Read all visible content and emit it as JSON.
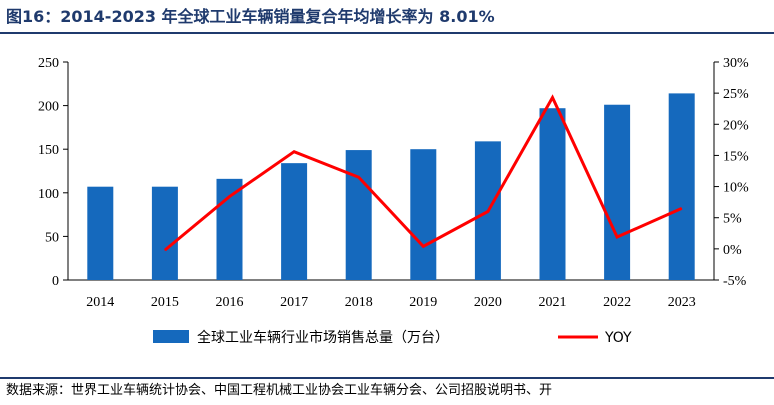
{
  "figure": {
    "title": "图16：2014-2023 年全球工业车辆销量复合年均增长率为 8.01%",
    "source": "数据来源：世界工业车辆统计协会、中国工程机械工业协会工业车辆分会、公司招股说明书、开"
  },
  "colors": {
    "bar": "#1569bd",
    "line": "#ff0000",
    "title": "#1f3a6d"
  },
  "chart_data": {
    "type": "bar",
    "categories": [
      "2014",
      "2015",
      "2016",
      "2017",
      "2018",
      "2019",
      "2020",
      "2021",
      "2022",
      "2023"
    ],
    "series": [
      {
        "name": "全球工业车辆行业市场销售总量（万台）",
        "type": "bar",
        "axis": "left",
        "values": [
          107,
          107,
          116,
          134,
          149,
          150,
          159,
          197,
          201,
          214
        ]
      },
      {
        "name": "YOY",
        "type": "line",
        "axis": "right",
        "values": [
          null,
          -0.2,
          8.4,
          15.6,
          11.5,
          0.4,
          6.0,
          24.3,
          1.9,
          6.5
        ]
      }
    ],
    "y_left": {
      "lim": [
        0,
        250
      ],
      "ticks": [
        "0",
        "50",
        "100",
        "150",
        "200",
        "250"
      ]
    },
    "y_right": {
      "lim": [
        -5,
        30
      ],
      "ticks": [
        "-5%",
        "0%",
        "5%",
        "10%",
        "15%",
        "20%",
        "25%",
        "30%"
      ]
    },
    "grid": false,
    "legend": "bottom"
  }
}
